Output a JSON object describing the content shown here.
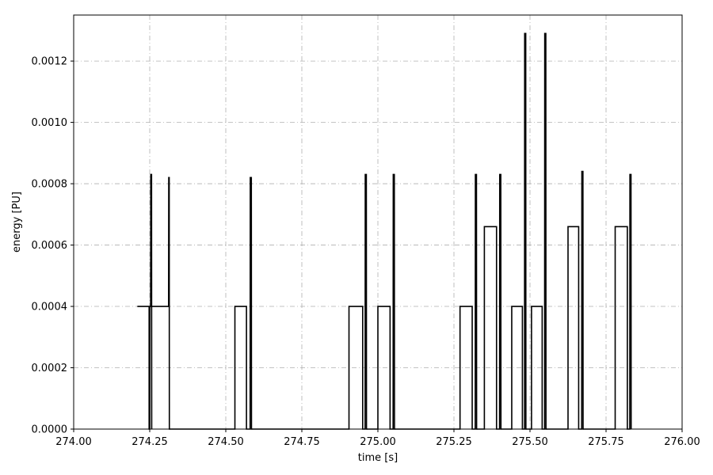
{
  "chart_data": {
    "type": "line",
    "xlabel": "time [s]",
    "ylabel": "energy [PU]",
    "xlim": [
      274.0,
      276.0
    ],
    "ylim": [
      0.0,
      0.00135
    ],
    "xticks": [
      274.0,
      274.25,
      274.5,
      274.75,
      275.0,
      275.25,
      275.5,
      275.75,
      276.0
    ],
    "xtick_labels": [
      "274.00",
      "274.25",
      "274.50",
      "274.75",
      "275.00",
      "275.25",
      "275.50",
      "275.75",
      "276.00"
    ],
    "yticks": [
      0.0,
      0.0002,
      0.0004,
      0.0006,
      0.0008,
      0.001,
      0.0012
    ],
    "ytick_labels": [
      "0.0000",
      "0.0002",
      "0.0004",
      "0.0006",
      "0.0008",
      "0.0010",
      "0.0012"
    ],
    "grid": true,
    "grid_style": "dash-dot",
    "series": [
      {
        "color": "#000000",
        "x": [
          274.21,
          274.248,
          274.248,
          274.25,
          274.25,
          274.253,
          274.2535,
          274.256,
          274.2565,
          274.256,
          274.26,
          274.26,
          274.29,
          274.29,
          274.31,
          274.312,
          274.3125,
          274.314,
          274.3145,
          274.316,
          274.316,
          274.53,
          274.53,
          274.568,
          274.568,
          274.58,
          274.5805,
          274.584,
          274.5845,
          274.586,
          274.586,
          274.905,
          274.905,
          274.95,
          274.95,
          274.958,
          274.9585,
          274.962,
          274.9625,
          274.965,
          274.965,
          275.0,
          275.0,
          275.04,
          275.04,
          275.05,
          275.0505,
          275.054,
          275.0545,
          275.056,
          275.056,
          275.27,
          275.27,
          275.31,
          275.31,
          275.32,
          275.3205,
          275.324,
          275.3245,
          275.326,
          275.326,
          275.35,
          275.35,
          275.39,
          275.39,
          275.4,
          275.4005,
          275.404,
          275.4045,
          275.406,
          275.406,
          275.44,
          275.44,
          275.475,
          275.475,
          275.482,
          275.4825,
          275.486,
          275.4865,
          275.488,
          275.488,
          275.505,
          275.505,
          275.54,
          275.54,
          275.548,
          275.5485,
          275.552,
          275.5525,
          275.555,
          275.555,
          275.625,
          275.625,
          275.66,
          275.66,
          275.67,
          275.6705,
          275.674,
          275.6745,
          275.676,
          275.676,
          275.78,
          275.78,
          275.82,
          275.82,
          275.828,
          275.8285,
          275.832,
          275.8325
        ],
        "y": [
          0.0004,
          0.0004,
          0.0,
          0.0,
          0.0004,
          0.0004,
          0.00083,
          0.00083,
          0.0,
          0.0004,
          0.0004,
          0.0004,
          0.0004,
          0.0004,
          0.0004,
          0.0004,
          0.00082,
          0.00082,
          0.0,
          0.0,
          0.0,
          0.0,
          0.0004,
          0.0004,
          0.0,
          0.0,
          0.00082,
          0.00082,
          0.0,
          0.0,
          0.0,
          0.0,
          0.0004,
          0.0004,
          0.0,
          0.0,
          0.00083,
          0.00083,
          0.0,
          0.0,
          0.0,
          0.0,
          0.0004,
          0.0004,
          0.0,
          0.0,
          0.00083,
          0.00083,
          0.0,
          0.0,
          0.0,
          0.0,
          0.0004,
          0.0004,
          0.0,
          0.0,
          0.00083,
          0.00083,
          0.0,
          0.0,
          0.0,
          0.0,
          0.00066,
          0.00066,
          0.0,
          0.0,
          0.00083,
          0.00083,
          0.0,
          0.0,
          0.0,
          0.0,
          0.0004,
          0.0004,
          0.0,
          0.0,
          0.00129,
          0.00129,
          0.0,
          0.0,
          0.0,
          0.0,
          0.0004,
          0.0004,
          0.0,
          0.0,
          0.00129,
          0.00129,
          0.0,
          0.0,
          0.0,
          0.0,
          0.00066,
          0.00066,
          0.0,
          0.0,
          0.00084,
          0.00084,
          0.0,
          0.0,
          0.0,
          0.0,
          0.00066,
          0.00066,
          0.0,
          0.0,
          0.00083,
          0.00083,
          0.0
        ]
      }
    ]
  }
}
